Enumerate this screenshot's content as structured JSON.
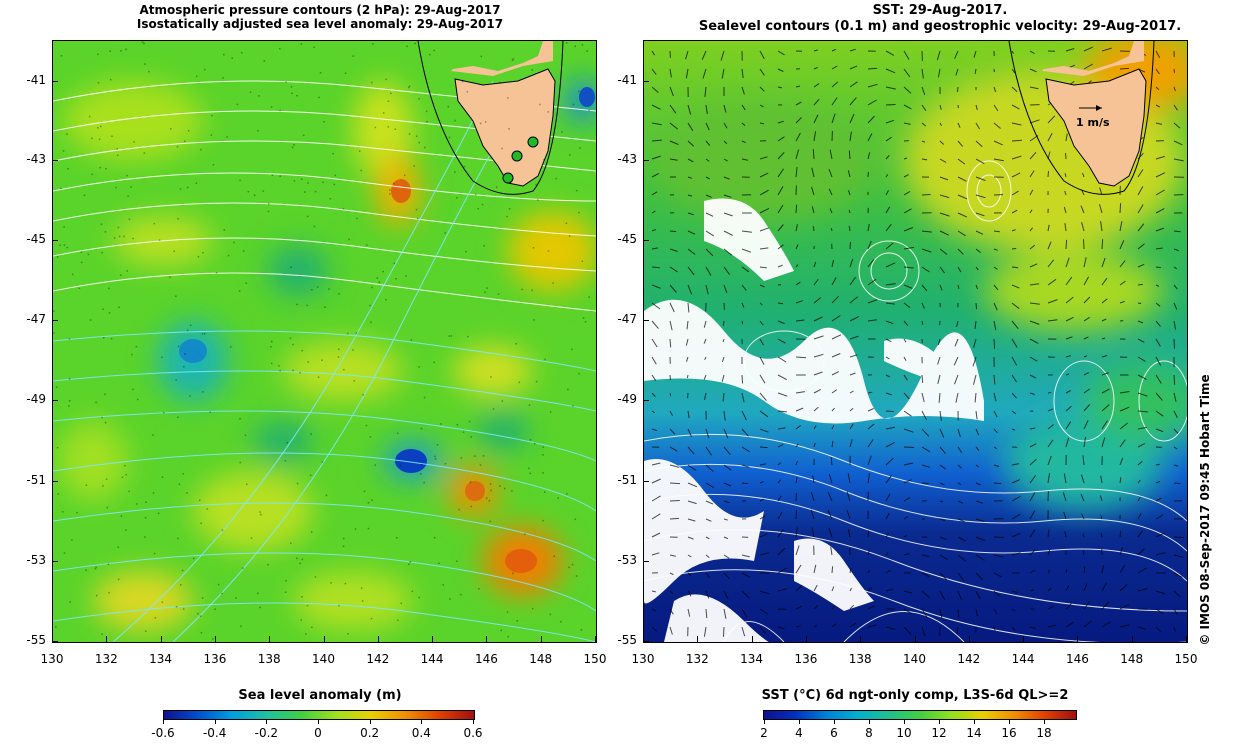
{
  "left_panel": {
    "title_line1": "Atmospheric pressure contours (2 hPa): 29-Aug-2017",
    "title_line2": "Isostatically adjusted sea level anomaly: 29-Aug-2017",
    "colorbar_title": "Sea level anomaly (m)",
    "colorbar_ticks": [
      "-0.6",
      "-0.4",
      "-0.2",
      "0",
      "0.2",
      "0.4",
      "0.6"
    ],
    "map_icon": "ocean-heatmap-with-land-mass",
    "colors": {
      "land": "#f5c396",
      "pressure_contour": "#7fe6ff",
      "marker": "#22bb22"
    }
  },
  "right_panel": {
    "title_line1": "SST: 29-Aug-2017.",
    "title_line2": "Sealevel contours (0.1 m) and geostrophic velocity: 29-Aug-2017.",
    "velocity_label": "1 m/s",
    "colorbar_title": "SST (°C) 6d ngt-only comp, L3S-6d QL>=2",
    "colorbar_ticks": [
      "2",
      "4",
      "6",
      "8",
      "10",
      "12",
      "14",
      "16",
      "18"
    ],
    "map_icon": "sst-heatmap-with-velocity-arrows",
    "colors": {
      "land": "#f5c396",
      "contour": "#ffffff",
      "cloud": "#ffffff"
    }
  },
  "axes": {
    "y_ticks": [
      "-41",
      "-43",
      "-45",
      "-47",
      "-49",
      "-51",
      "-53",
      "-55"
    ],
    "x_ticks": [
      "130",
      "132",
      "134",
      "136",
      "138",
      "140",
      "142",
      "144",
      "146",
      "148",
      "150"
    ]
  },
  "credit": "© IMOS 08-Sep-2017 09:45 Hobart Time"
}
